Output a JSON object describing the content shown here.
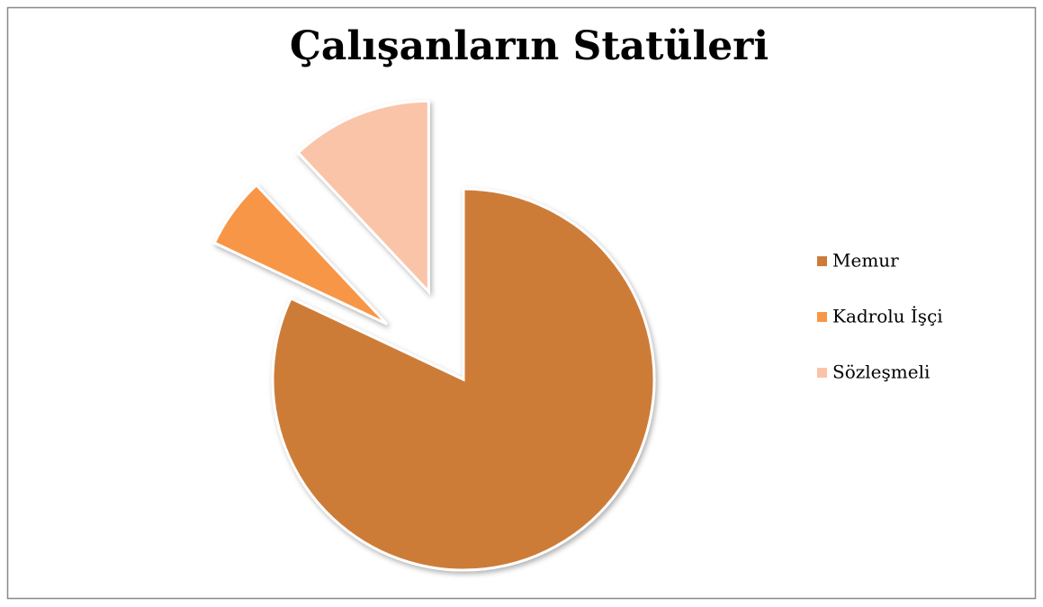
{
  "chart_data": {
    "type": "pie",
    "title": "Çalışanların Statüleri",
    "categories": [
      "Memur",
      "Kadrolu İşçi",
      "Sözleşmeli"
    ],
    "values": [
      82,
      6,
      12
    ],
    "colors": [
      "#cd7b38",
      "#f79646",
      "#fac4a9"
    ],
    "legend": "right"
  }
}
